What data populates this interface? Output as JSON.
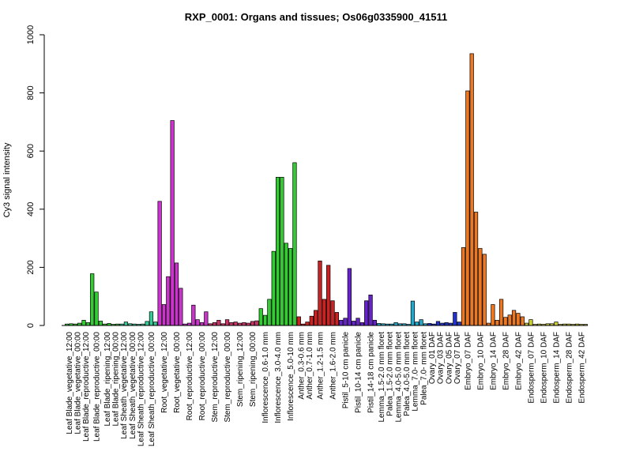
{
  "chart_data": {
    "type": "bar",
    "title": "RXP_0001: Organs and tissues; Os06g0335900_41511",
    "xlabel": "",
    "ylabel": "Cy3 signal intensity",
    "ylim": [
      0,
      1000
    ],
    "yticks": [
      0,
      200,
      400,
      600,
      800,
      1000
    ],
    "legend": "none",
    "grid": false,
    "labels": [
      "Leaf Blade_vegetative_12:00",
      "Leaf Blade_vegetative_00:00",
      "Leaf Blade_reproductive_12:00",
      "Leaf Blade_reproductive_00:00",
      "Leaf Blade_ripening_12:00",
      "Leaf Blade_ripening_00:00",
      "Leaf Sheath_vegetative_12:00",
      "Leaf Sheath_vegetative_00:00",
      "Leaf Sheath_reproductive_12:00",
      "Leaf Sheath_reproductive_00:00",
      "Root_vegetative_12:00",
      "Root_vegetative_00:00",
      "Root_reproductive_12:00",
      "Root_reproductive_00:00",
      "Stem_reproductive_12:00",
      "Stem_reproductive_00:00",
      "Stem_ripening_12:00",
      "Stem_ripening_00:00",
      "Inflorescence_0.6-1.0 mm",
      "Inflorescence_3.0-4.0 mm",
      "Inflorescence_5.0-10 mm",
      "Anther_0.3-0.6 mm",
      "Anther_0.7-1.0 mm",
      "Anther_1.2-1.5 mm",
      "Anther_1.6-2.0 mm",
      "Pistil_5-10 cm panicle",
      "Pistil_10-14 cm panicle",
      "Pistil_14-18 cm panicle",
      "Lemma_1.5-2.0 mm floret",
      "Palea_1.5-2.0 mm floret",
      "Lemma_4.0-5.0 mm floret",
      "Palea_4.0-5.0 mm floret",
      "Lemma_7.0- mm floret",
      "Palea_7.0- mm floret",
      "Ovary_01 DAF",
      "Ovary_03 DAF",
      "Ovary_05 DAF",
      "Ovary_07 DAF",
      "Embryo_07 DAF",
      "Embryo_10 DAF",
      "Embryo_14 DAF",
      "Embryo_28 DAF",
      "Embryo_42 DAF",
      "Endosperm_07 DAF",
      "Endosperm_10 DAF",
      "Endosperm_14 DAF",
      "Endosperm_28 DAF",
      "Endosperm_42 DAF"
    ],
    "groups": [
      {
        "color": "#33cc33",
        "values": [
          5,
          6
        ]
      },
      {
        "color": "#33cc33",
        "values": [
          5,
          8
        ]
      },
      {
        "color": "#33cc33",
        "values": [
          18,
          10
        ]
      },
      {
        "color": "#33cc33",
        "values": [
          178,
          115,
          15
        ]
      },
      {
        "color": "#33cc33",
        "values": [
          5,
          7
        ]
      },
      {
        "color": "#33cc33",
        "values": [
          4,
          5
        ]
      },
      {
        "color": "#33cc99",
        "values": [
          5,
          12
        ]
      },
      {
        "color": "#33cc99",
        "values": [
          6,
          5
        ]
      },
      {
        "color": "#33cc99",
        "values": [
          4,
          5
        ]
      },
      {
        "color": "#33cc99",
        "values": [
          14,
          47,
          12
        ]
      },
      {
        "color": "#cc33cc",
        "values": [
          427,
          72,
          168
        ]
      },
      {
        "color": "#cc33cc",
        "values": [
          705,
          215,
          128
        ]
      },
      {
        "color": "#cc33cc",
        "values": [
          5,
          8,
          70
        ]
      },
      {
        "color": "#cc33cc",
        "values": [
          20,
          10,
          47
        ]
      },
      {
        "color": "#cc3366",
        "values": [
          6,
          10,
          18
        ]
      },
      {
        "color": "#cc3366",
        "values": [
          6,
          20,
          10
        ]
      },
      {
        "color": "#cc3366",
        "values": [
          12,
          8,
          10
        ]
      },
      {
        "color": "#cc3366",
        "values": [
          8,
          14,
          16
        ]
      },
      {
        "color": "#33cc33",
        "values": [
          58,
          35,
          90
        ]
      },
      {
        "color": "#33cc33",
        "values": [
          255,
          510,
          510
        ]
      },
      {
        "color": "#33cc33",
        "values": [
          283,
          265,
          560
        ]
      },
      {
        "color": "#cc2222",
        "values": [
          30,
          5
        ]
      },
      {
        "color": "#cc2222",
        "values": [
          12,
          32
        ]
      },
      {
        "color": "#cc2222",
        "values": [
          52,
          222,
          90
        ]
      },
      {
        "color": "#cc2222",
        "values": [
          207,
          85,
          45
        ]
      },
      {
        "color": "#6622cc",
        "values": [
          18,
          25,
          196
        ]
      },
      {
        "color": "#6622cc",
        "values": [
          15,
          25,
          10
        ]
      },
      {
        "color": "#6622cc",
        "values": [
          85,
          105,
          18
        ]
      },
      {
        "color": "#22aacc",
        "values": [
          7,
          6
        ]
      },
      {
        "color": "#22aacc",
        "values": [
          5,
          5
        ]
      },
      {
        "color": "#22aacc",
        "values": [
          10,
          6
        ]
      },
      {
        "color": "#22aacc",
        "values": [
          6,
          4
        ]
      },
      {
        "color": "#22aacc",
        "values": [
          84,
          12
        ]
      },
      {
        "color": "#22aacc",
        "values": [
          20,
          6
        ]
      },
      {
        "color": "#2233cc",
        "values": [
          7,
          5
        ]
      },
      {
        "color": "#2233cc",
        "values": [
          14,
          8
        ]
      },
      {
        "color": "#2233cc",
        "values": [
          10,
          8
        ]
      },
      {
        "color": "#2233cc",
        "values": [
          45,
          12
        ]
      },
      {
        "color": "#ee7722",
        "values": [
          268,
          807,
          935
        ]
      },
      {
        "color": "#ee7722",
        "values": [
          390,
          265,
          245
        ]
      },
      {
        "color": "#ee7722",
        "values": [
          8,
          72,
          18
        ]
      },
      {
        "color": "#ee7722",
        "values": [
          90,
          28,
          36
        ]
      },
      {
        "color": "#ee7722",
        "values": [
          52,
          42,
          30
        ]
      },
      {
        "color": "#cccc33",
        "values": [
          8,
          20,
          4
        ]
      },
      {
        "color": "#cccc33",
        "values": [
          5,
          4,
          6
        ]
      },
      {
        "color": "#cccc33",
        "values": [
          6,
          12,
          4
        ]
      },
      {
        "color": "#cccc33",
        "values": [
          5,
          5,
          4
        ]
      },
      {
        "color": "#cccc33",
        "values": [
          5,
          4,
          4
        ]
      }
    ]
  }
}
